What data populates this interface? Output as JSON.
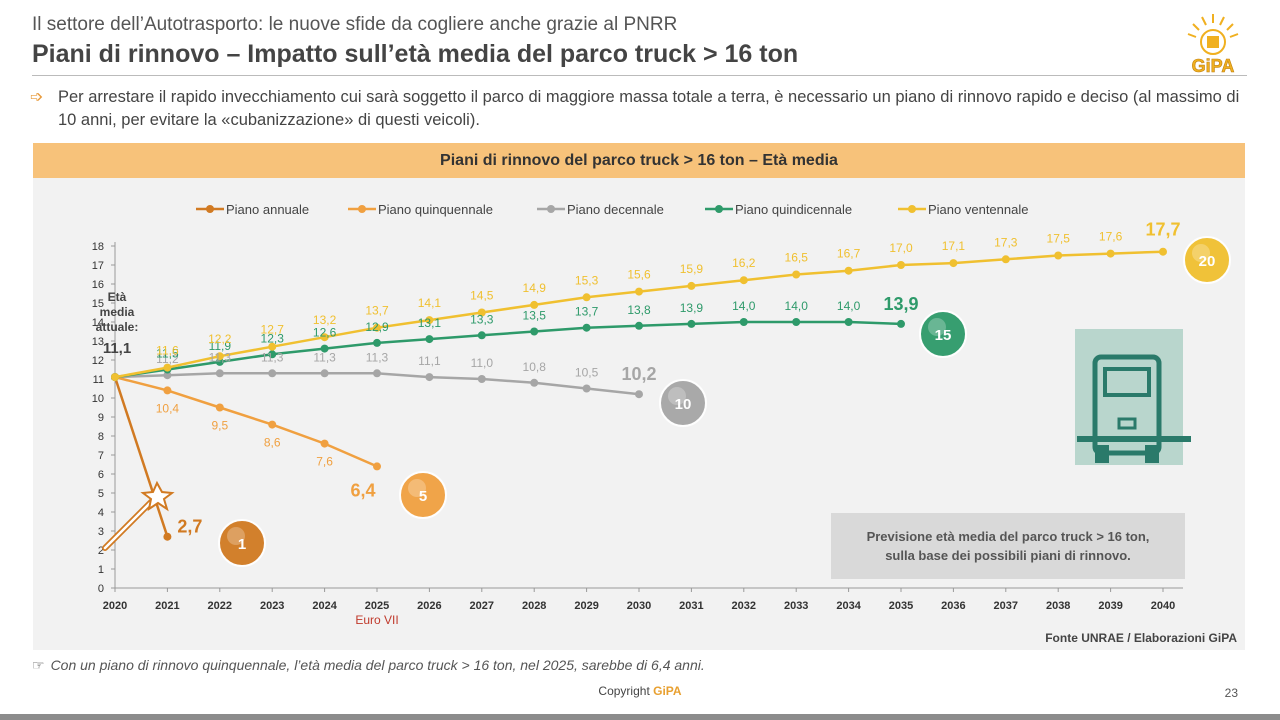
{
  "header": {
    "suptitle": "Il settore dell’Autotrasporto: le nuove sfide da cogliere anche grazie al PNRR",
    "title": "Piani di rinnovo – Impatto sull’età media del parco truck > 16 ton",
    "logo_text": "GiPA"
  },
  "bullet": {
    "text": "Per arrestare il rapido invecchiamento cui sarà soggetto il parco di maggiore massa totale a terra, è necessario un piano di rinnovo rapido e deciso (al massimo di 10 anni, per evitare la «cubanizzazione» di questi veicoli)."
  },
  "colors": {
    "header_band": "#f7c27a",
    "annuale": "#d17a22",
    "quinquennale": "#f0a040",
    "decennale": "#a6a6a6",
    "quindicennale": "#2e9a6a",
    "ventennale": "#f0c030",
    "truck_icon": "#2a7a6a"
  },
  "chart_data": {
    "type": "line",
    "title": "Piani di rinnovo del parco truck > 16 ton – Età media",
    "x": [
      2020,
      2021,
      2022,
      2023,
      2024,
      2025,
      2026,
      2027,
      2028,
      2029,
      2030,
      2031,
      2032,
      2033,
      2034,
      2035,
      2036,
      2037,
      2038,
      2039,
      2040
    ],
    "ylim": [
      0,
      18
    ],
    "yticks": [
      0,
      1,
      2,
      3,
      4,
      5,
      6,
      7,
      8,
      9,
      10,
      11,
      12,
      13,
      14,
      15,
      16,
      17,
      18
    ],
    "start_label": [
      "Età",
      "media",
      "attuale:"
    ],
    "start_value": "11,1",
    "series": [
      {
        "key": "annuale",
        "name": "Piano annuale",
        "color": "#d17a22",
        "x": [
          2020,
          2021
        ],
        "values": [
          11.1,
          2.7
        ],
        "labels": [
          null,
          null
        ],
        "end_label": "2,7",
        "badge": "1"
      },
      {
        "key": "quinquennale",
        "name": "Piano quinquennale",
        "color": "#f0a040",
        "x": [
          2020,
          2021,
          2022,
          2023,
          2024,
          2025
        ],
        "values": [
          11.1,
          10.4,
          9.5,
          8.6,
          7.6,
          6.4
        ],
        "labels": [
          null,
          "10,4",
          "9,5",
          "8,6",
          "7,6",
          null
        ],
        "end_label": "6,4",
        "badge": "5"
      },
      {
        "key": "decennale",
        "name": "Piano decennale",
        "color": "#a6a6a6",
        "x": [
          2020,
          2021,
          2022,
          2023,
          2024,
          2025,
          2026,
          2027,
          2028,
          2029,
          2030
        ],
        "values": [
          11.1,
          11.2,
          11.3,
          11.3,
          11.3,
          11.3,
          11.1,
          11.0,
          10.8,
          10.5,
          10.2
        ],
        "labels": [
          null,
          "11,2",
          "11,3",
          "11,3",
          "11,3",
          "11,3",
          "11,1",
          "11,0",
          "10,8",
          "10,5",
          null
        ],
        "end_label": "10,2",
        "badge": "10"
      },
      {
        "key": "quindicennale",
        "name": "Piano quindicennale",
        "color": "#2e9a6a",
        "x": [
          2020,
          2021,
          2022,
          2023,
          2024,
          2025,
          2026,
          2027,
          2028,
          2029,
          2030,
          2031,
          2032,
          2033,
          2034,
          2035
        ],
        "values": [
          11.1,
          11.5,
          11.9,
          12.3,
          12.6,
          12.9,
          13.1,
          13.3,
          13.5,
          13.7,
          13.8,
          13.9,
          14.0,
          14.0,
          14.0,
          13.9
        ],
        "labels": [
          null,
          "11,5",
          "11,9",
          "12,3",
          "12,6",
          "12,9",
          "13,1",
          "13,3",
          "13,5",
          "13,7",
          "13,8",
          "13,9",
          "14,0",
          "14,0",
          "14,0",
          null
        ],
        "end_label": "13,9",
        "badge": "15"
      },
      {
        "key": "ventennale",
        "name": "Piano ventennale",
        "color": "#f0c030",
        "x": [
          2020,
          2021,
          2022,
          2023,
          2024,
          2025,
          2026,
          2027,
          2028,
          2029,
          2030,
          2031,
          2032,
          2033,
          2034,
          2035,
          2036,
          2037,
          2038,
          2039,
          2040
        ],
        "values": [
          11.1,
          11.6,
          12.2,
          12.7,
          13.2,
          13.7,
          14.1,
          14.5,
          14.9,
          15.3,
          15.6,
          15.9,
          16.2,
          16.5,
          16.7,
          17.0,
          17.1,
          17.3,
          17.5,
          17.6,
          17.7
        ],
        "labels": [
          null,
          "11,6",
          "12,2",
          "12,7",
          "13,2",
          "13,7",
          "14,1",
          "14,5",
          "14,9",
          "15,3",
          "15,6",
          "15,9",
          "16,2",
          "16,5",
          "16,7",
          "17,0",
          "17,1",
          "17,3",
          "17,5",
          "17,6",
          null
        ],
        "end_label": "17,7",
        "badge": "20"
      }
    ],
    "annotation_2025": "Euro VII",
    "legend_position": "top"
  },
  "callout": {
    "line1": "Previsione età media del parco truck > 16 ton,",
    "line2": "sulla base dei possibili piani di rinnovo."
  },
  "source": "Fonte UNRAE / Elaborazioni GiPA",
  "note": "Con un piano di rinnovo quinquennale, l’età media del parco truck > 16 ton, nel 2025, sarebbe di 6,4 anni.",
  "footer": {
    "copyright_prefix": "Copyright",
    "copyright_brand": "GiPA",
    "page": "23"
  }
}
